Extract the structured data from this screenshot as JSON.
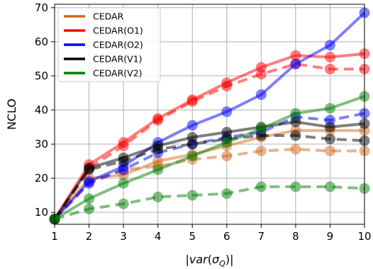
{
  "chart_data": {
    "type": "line",
    "xlabel": "|var(σ_Q)|",
    "ylabel": "NCLO",
    "xlim": [
      1,
      10
    ],
    "ylim": [
      6.5,
      71
    ],
    "xticks": [
      1,
      2,
      3,
      4,
      5,
      6,
      7,
      8,
      9,
      10
    ],
    "yticks": [
      10,
      20,
      30,
      40,
      50,
      60,
      70
    ],
    "grid": true,
    "legend_position": "top-left",
    "legend": [
      {
        "name": "CEDAR",
        "color": "#d2691e"
      },
      {
        "name": "CEDAR(O1)",
        "color": "#ff0000"
      },
      {
        "name": "CEDAR(O2)",
        "color": "#0000ff"
      },
      {
        "name": "CEDAR(V1)",
        "color": "#000000"
      },
      {
        "name": "CEDAR(V2)",
        "color": "#008000"
      }
    ],
    "series": [
      {
        "name": "CEDAR",
        "color": "#d2691e",
        "style": "solid",
        "x": [
          1,
          2,
          3,
          4,
          5,
          6,
          7,
          8,
          9,
          10
        ],
        "values": [
          8,
          20,
          21,
          25,
          27,
          29.5,
          32,
          34,
          34,
          34
        ]
      },
      {
        "name": "CEDAR",
        "color": "#d2691e",
        "style": "dashed",
        "x": [
          1,
          2,
          3,
          4,
          5,
          6,
          7,
          8,
          9,
          10
        ],
        "values": [
          8,
          19,
          22.5,
          23.5,
          25.5,
          26.5,
          28,
          28.5,
          28,
          28
        ]
      },
      {
        "name": "CEDAR(O1)",
        "color": "#ff0000",
        "style": "solid",
        "x": [
          1,
          2,
          3,
          4,
          5,
          6,
          7,
          8,
          9,
          10
        ],
        "values": [
          8,
          24,
          30.5,
          37.5,
          43,
          48,
          52.5,
          56,
          55.5,
          56.5
        ]
      },
      {
        "name": "CEDAR(O1)",
        "color": "#ff0000",
        "style": "dashed",
        "x": [
          1,
          2,
          3,
          4,
          5,
          6,
          7,
          8,
          9,
          10
        ],
        "values": [
          8,
          23,
          29.5,
          37,
          42.5,
          47,
          50.5,
          53.5,
          52,
          52
        ]
      },
      {
        "name": "CEDAR(O2)",
        "color": "#0000ff",
        "style": "solid",
        "x": [
          1,
          2,
          3,
          4,
          5,
          6,
          7,
          8,
          9,
          10
        ],
        "values": [
          8,
          19,
          23.5,
          30.5,
          35.5,
          39.5,
          44.5,
          53.5,
          59,
          68.5
        ]
      },
      {
        "name": "CEDAR(O2)",
        "color": "#0000ff",
        "style": "dashed",
        "x": [
          1,
          2,
          3,
          4,
          5,
          6,
          7,
          8,
          9,
          10
        ],
        "values": [
          8,
          18.5,
          22.5,
          27.5,
          30,
          32,
          33.5,
          38,
          37,
          39
        ]
      },
      {
        "name": "CEDAR(V1)",
        "color": "#000000",
        "style": "solid",
        "x": [
          1,
          2,
          3,
          4,
          5,
          6,
          7,
          8,
          9,
          10
        ],
        "values": [
          8,
          23,
          26,
          29.5,
          32,
          33.5,
          35,
          36.5,
          35,
          36
        ]
      },
      {
        "name": "CEDAR(V1)",
        "color": "#000000",
        "style": "dashed",
        "x": [
          1,
          2,
          3,
          4,
          5,
          6,
          7,
          8,
          9,
          10
        ],
        "values": [
          8,
          22.5,
          25,
          28.5,
          30,
          31.5,
          32.5,
          32.5,
          31.5,
          31
        ]
      },
      {
        "name": "CEDAR(V2)",
        "color": "#008000",
        "style": "solid",
        "x": [
          1,
          2,
          3,
          4,
          5,
          6,
          7,
          8,
          9,
          10
        ],
        "values": [
          8,
          14,
          18.5,
          22.5,
          26.5,
          30.5,
          34.5,
          39,
          40.5,
          44
        ]
      },
      {
        "name": "CEDAR(V2)",
        "color": "#008000",
        "style": "dashed",
        "x": [
          1,
          2,
          3,
          4,
          5,
          6,
          7,
          8,
          9,
          10
        ],
        "values": [
          8,
          11,
          12.5,
          14.5,
          15,
          15.5,
          17.5,
          17.5,
          17.5,
          17
        ]
      }
    ]
  }
}
